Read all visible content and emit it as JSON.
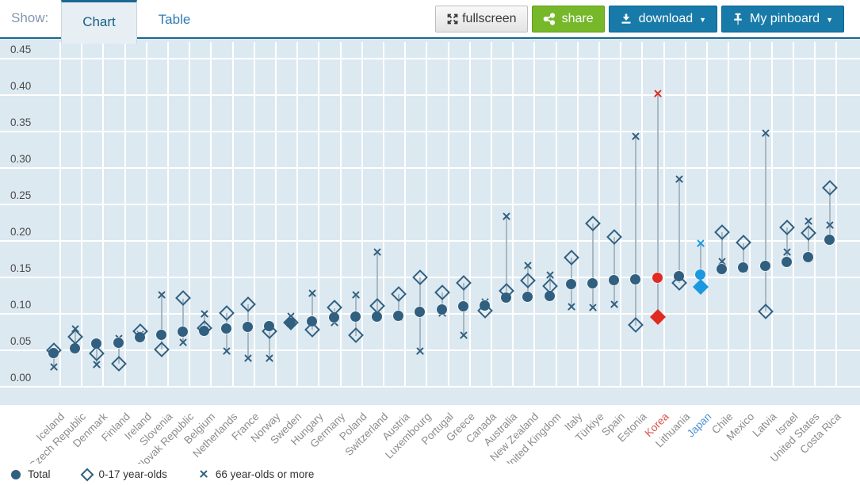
{
  "header": {
    "show_label": "Show:",
    "tabs": [
      {
        "label": "Chart",
        "active": true
      },
      {
        "label": "Table",
        "active": false
      }
    ],
    "buttons": {
      "fullscreen": "fullscreen",
      "share": "share",
      "download": "download",
      "pinboard": "My pinboard",
      "caret": "▼"
    }
  },
  "colors": {
    "accent": "#19688f",
    "plot_bg": "#dde9f1",
    "grid": "#ffffff",
    "connector": "#a7b8c2",
    "marker": "#305f7f",
    "korea_red": "#e02b22",
    "japan_blue": "#1b98e0",
    "axis_label": "#8c8c8c",
    "korea_label": "#d9534a",
    "japan_label": "#4a90d2",
    "share_green": "#76b82a",
    "button_blue": "#187aa9"
  },
  "chart_data": {
    "type": "scatter",
    "title": "",
    "xlabel": "",
    "ylabel": "",
    "ylim": [
      0,
      0.45
    ],
    "ytick_step": 0.05,
    "yticks": [
      "0.00",
      "0.05",
      "0.10",
      "0.15",
      "0.20",
      "0.25",
      "0.30",
      "0.35",
      "0.40",
      "0.45"
    ],
    "grid": true,
    "legend_position": "bottom-left",
    "series": [
      {
        "name": "Total",
        "marker": "circle"
      },
      {
        "name": "0-17 year-olds",
        "marker": "diamond"
      },
      {
        "name": "66 year-olds or more",
        "marker": "x"
      }
    ],
    "countries": [
      {
        "name": "Iceland",
        "total": 0.046,
        "age0_17": 0.05,
        "age66plus": 0.027
      },
      {
        "name": "Czech Republic",
        "total": 0.052,
        "age0_17": 0.068,
        "age66plus": 0.079
      },
      {
        "name": "Denmark",
        "total": 0.059,
        "age0_17": 0.045,
        "age66plus": 0.03
      },
      {
        "name": "Finland",
        "total": 0.06,
        "age0_17": 0.031,
        "age66plus": 0.066
      },
      {
        "name": "Ireland",
        "total": 0.067,
        "age0_17": 0.076,
        "age66plus": 0.071
      },
      {
        "name": "Slovenia",
        "total": 0.071,
        "age0_17": 0.051,
        "age66plus": 0.126
      },
      {
        "name": "Slovak Republic",
        "total": 0.075,
        "age0_17": 0.121,
        "age66plus": 0.061
      },
      {
        "name": "Belgium",
        "total": 0.076,
        "age0_17": 0.08,
        "age66plus": 0.1
      },
      {
        "name": "Netherlands",
        "total": 0.079,
        "age0_17": 0.101,
        "age66plus": 0.049
      },
      {
        "name": "France",
        "total": 0.081,
        "age0_17": 0.113,
        "age66plus": 0.039
      },
      {
        "name": "Norway",
        "total": 0.083,
        "age0_17": 0.076,
        "age66plus": 0.039
      },
      {
        "name": "Sweden",
        "total": 0.087,
        "age0_17": 0.088,
        "age66plus": 0.096
      },
      {
        "name": "Hungary",
        "total": 0.089,
        "age0_17": 0.078,
        "age66plus": 0.128
      },
      {
        "name": "Germany",
        "total": 0.095,
        "age0_17": 0.108,
        "age66plus": 0.088
      },
      {
        "name": "Poland",
        "total": 0.096,
        "age0_17": 0.07,
        "age66plus": 0.126
      },
      {
        "name": "Switzerland",
        "total": 0.096,
        "age0_17": 0.11,
        "age66plus": 0.185
      },
      {
        "name": "Austria",
        "total": 0.097,
        "age0_17": 0.127,
        "age66plus": 0.095
      },
      {
        "name": "Luxembourg",
        "total": 0.102,
        "age0_17": 0.15,
        "age66plus": 0.049
      },
      {
        "name": "Portugal",
        "total": 0.105,
        "age0_17": 0.129,
        "age66plus": 0.101
      },
      {
        "name": "Greece",
        "total": 0.11,
        "age0_17": 0.142,
        "age66plus": 0.07
      },
      {
        "name": "Canada",
        "total": 0.111,
        "age0_17": 0.104,
        "age66plus": 0.116
      },
      {
        "name": "Australia",
        "total": 0.122,
        "age0_17": 0.131,
        "age66plus": 0.233
      },
      {
        "name": "New Zealand",
        "total": 0.123,
        "age0_17": 0.145,
        "age66plus": 0.166
      },
      {
        "name": "United Kingdom",
        "total": 0.124,
        "age0_17": 0.138,
        "age66plus": 0.153
      },
      {
        "name": "Italy",
        "total": 0.14,
        "age0_17": 0.177,
        "age66plus": 0.11
      },
      {
        "name": "Türkiye",
        "total": 0.141,
        "age0_17": 0.224,
        "age66plus": 0.108
      },
      {
        "name": "Spain",
        "total": 0.146,
        "age0_17": 0.205,
        "age66plus": 0.113
      },
      {
        "name": "Estonia",
        "total": 0.147,
        "age0_17": 0.084,
        "age66plus": 0.343
      },
      {
        "name": "Korea",
        "total": 0.149,
        "age0_17": 0.095,
        "age66plus": 0.402,
        "highlight": "red"
      },
      {
        "name": "Lithuania",
        "total": 0.151,
        "age0_17": 0.142,
        "age66plus": 0.285
      },
      {
        "name": "Japan",
        "total": 0.153,
        "age0_17": 0.137,
        "age66plus": 0.197,
        "highlight": "blue"
      },
      {
        "name": "Chile",
        "total": 0.161,
        "age0_17": 0.212,
        "age66plus": 0.171
      },
      {
        "name": "Mexico",
        "total": 0.163,
        "age0_17": 0.197,
        "age66plus": 0.162
      },
      {
        "name": "Latvia",
        "total": 0.165,
        "age0_17": 0.103,
        "age66plus": 0.348
      },
      {
        "name": "Israel",
        "total": 0.171,
        "age0_17": 0.218,
        "age66plus": 0.185
      },
      {
        "name": "United States",
        "total": 0.177,
        "age0_17": 0.21,
        "age66plus": 0.227
      },
      {
        "name": "Costa Rica",
        "total": 0.201,
        "age0_17": 0.272,
        "age66plus": 0.221
      }
    ]
  }
}
